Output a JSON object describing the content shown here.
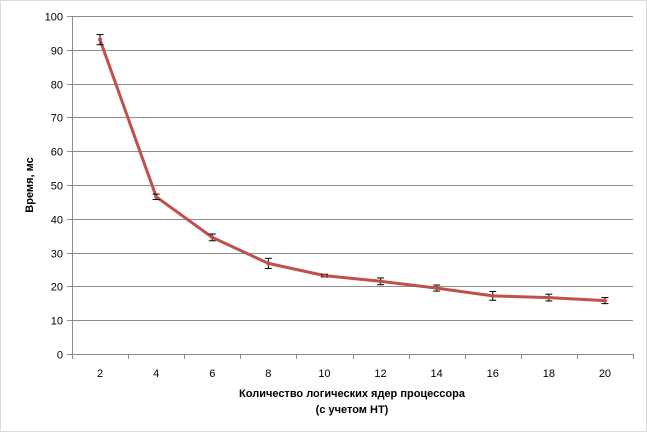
{
  "chart_data": {
    "type": "line",
    "x": [
      2,
      4,
      6,
      8,
      10,
      12,
      14,
      16,
      18,
      20
    ],
    "series": [
      {
        "values": [
          93,
          46.5,
          34.5,
          26.8,
          23.2,
          21.5,
          19.5,
          17.2,
          16.7,
          15.8
        ],
        "errors": [
          1.5,
          0.8,
          1.0,
          1.5,
          0.4,
          1.0,
          0.9,
          1.3,
          1.0,
          0.9
        ],
        "color": "#c0504d"
      }
    ],
    "xlabel_line1": "Количество  логических  ядер процессора",
    "xlabel_line2": "(с учетом НТ)",
    "ylabel": "Время,  мс",
    "ylim": [
      0,
      100
    ],
    "yticks": [
      0,
      10,
      20,
      30,
      40,
      50,
      60,
      70,
      80,
      90,
      100
    ],
    "grid": "horizontal",
    "legend": "none",
    "gridline_color": "#8c8c8c"
  }
}
